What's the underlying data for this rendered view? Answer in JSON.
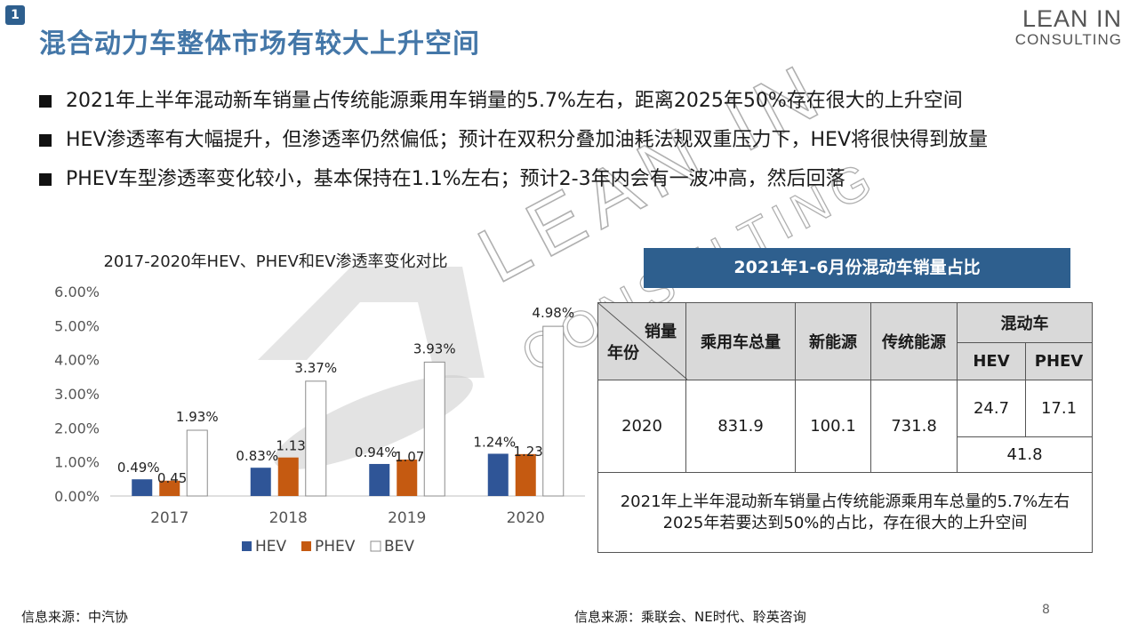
{
  "slide_number": "1",
  "title": "混合动力车整体市场有较大上升空间",
  "logo": {
    "line1": "LEAN IN",
    "line2": "CONSULTING"
  },
  "bullets": [
    "2021年上半年混动新车销量占传统能源乘用车销量的5.7%左右，距离2025年50%存在很大的上升空间",
    "HEV渗透率有大幅提升，但渗透率仍然偏低；预计在双积分叠加油耗法规双重压力下，HEV将很快得到放量",
    "PHEV车型渗透率变化较小，基本保持在1.1%左右；预计2-3年内会有一波冲高，然后回落"
  ],
  "chart_data": {
    "type": "bar",
    "title": "2017-2020年HEV、PHEV和EV渗透率变化对比",
    "categories": [
      "2017",
      "2018",
      "2019",
      "2020"
    ],
    "series": [
      {
        "name": "HEV",
        "values": [
          0.49,
          0.83,
          0.94,
          1.24
        ],
        "labels": [
          "0.49%",
          "0.83%",
          "0.94%",
          "1.24%"
        ],
        "color": "#2f5597"
      },
      {
        "name": "PHEV",
        "values": [
          0.45,
          1.13,
          1.07,
          1.23
        ],
        "labels": [
          "0.45%",
          "1.13%",
          "1.07%",
          "1.23%"
        ],
        "color": "#c55a11"
      },
      {
        "name": "BEV",
        "values": [
          1.93,
          3.37,
          3.93,
          4.98
        ],
        "labels": [
          "1.93%",
          "3.37%",
          "3.93%",
          "4.98%"
        ],
        "color": "#ffffff"
      }
    ],
    "ylim": [
      0,
      6
    ],
    "yticks": [
      "0.00%",
      "1.00%",
      "2.00%",
      "3.00%",
      "4.00%",
      "5.00%",
      "6.00%"
    ],
    "grid": false,
    "legend": "bottom"
  },
  "table": {
    "banner": "2021年1-6月份混动车销量占比",
    "corner_top": "销量",
    "corner_bottom": "年份",
    "headers": [
      "乘用车总量",
      "新能源",
      "传统能源"
    ],
    "hybrid_header": "混动车",
    "hybrid_sub": [
      "HEV",
      "PHEV"
    ],
    "row": {
      "year": "2020",
      "total": "831.9",
      "nev": "100.1",
      "ice": "731.8",
      "hev": "24.7",
      "phev": "17.1",
      "hybrid_total": "41.8"
    },
    "note_line1": "2021年上半年混动新车销量占传统能源乘用车总量的5.7%左右",
    "note_line2": "2025年若要达到50%的占比，存在很大的上升空间"
  },
  "source_left": "信息来源：中汽协",
  "source_right": "信息来源：乘联会、NE时代、聆英咨询",
  "page_number": "8",
  "watermark": {
    "line1": "LEAN IN",
    "line2": "CONSULTING"
  }
}
